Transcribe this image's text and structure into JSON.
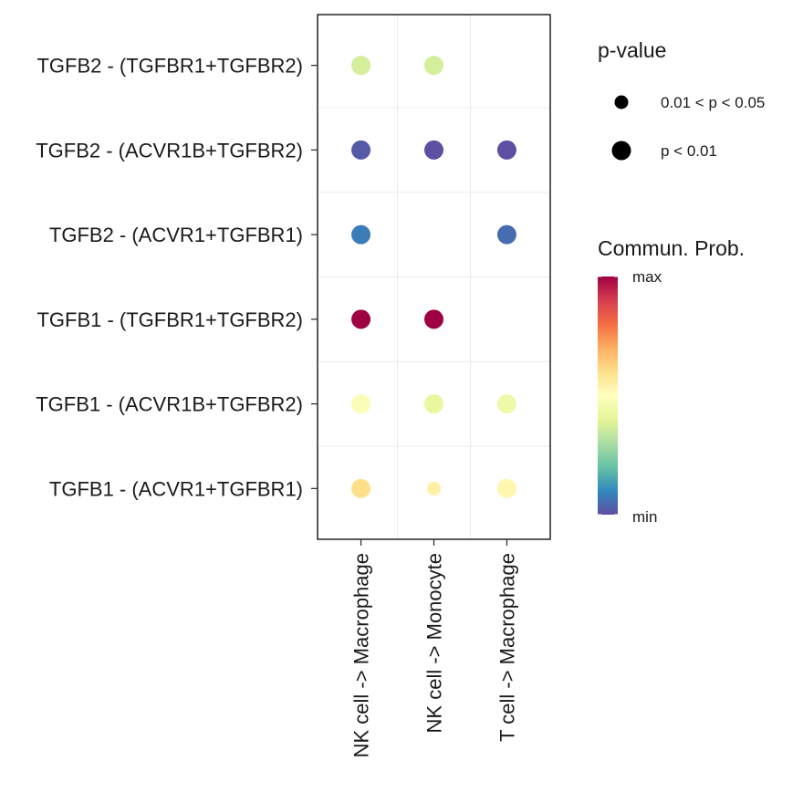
{
  "chart_data": {
    "type": "dot",
    "rows": [
      "TGFB2 - (TGFBR1+TGFBR2)",
      "TGFB2 - (ACVR1B+TGFBR2)",
      "TGFB2 - (ACVR1+TGFBR1)",
      "TGFB1 - (TGFBR1+TGFBR2)",
      "TGFB1 - (ACVR1B+TGFBR2)",
      "TGFB1 - (ACVR1+TGFBR1)"
    ],
    "columns": [
      "NK cell -> Macrophage",
      "NK cell -> Monocyte",
      "T cell -> Macrophage"
    ],
    "points": [
      {
        "row": "TGFB2 - (TGFBR1+TGFBR2)",
        "col": "NK cell -> Macrophage",
        "prob": 0.37,
        "pvalue": "p < 0.01"
      },
      {
        "row": "TGFB2 - (TGFBR1+TGFBR2)",
        "col": "NK cell -> Monocyte",
        "prob": 0.37,
        "pvalue": "p < 0.01"
      },
      {
        "row": "TGFB2 - (ACVR1B+TGFBR2)",
        "col": "NK cell -> Macrophage",
        "prob": 0.02,
        "pvalue": "p < 0.01"
      },
      {
        "row": "TGFB2 - (ACVR1B+TGFBR2)",
        "col": "NK cell -> Monocyte",
        "prob": 0.0,
        "pvalue": "p < 0.01"
      },
      {
        "row": "TGFB2 - (ACVR1B+TGFBR2)",
        "col": "T cell -> Macrophage",
        "prob": 0.0,
        "pvalue": "p < 0.01"
      },
      {
        "row": "TGFB2 - (ACVR1+TGFBR1)",
        "col": "NK cell -> Macrophage",
        "prob": 0.08,
        "pvalue": "p < 0.01"
      },
      {
        "row": "TGFB2 - (ACVR1+TGFBR1)",
        "col": "T cell -> Macrophage",
        "prob": 0.05,
        "pvalue": "p < 0.01"
      },
      {
        "row": "TGFB1 - (TGFBR1+TGFBR2)",
        "col": "NK cell -> Macrophage",
        "prob": 1.0,
        "pvalue": "p < 0.01"
      },
      {
        "row": "TGFB1 - (TGFBR1+TGFBR2)",
        "col": "NK cell -> Monocyte",
        "prob": 1.0,
        "pvalue": "p < 0.01"
      },
      {
        "row": "TGFB1 - (ACVR1B+TGFBR2)",
        "col": "NK cell -> Macrophage",
        "prob": 0.48,
        "pvalue": "p < 0.01"
      },
      {
        "row": "TGFB1 - (ACVR1B+TGFBR2)",
        "col": "NK cell -> Monocyte",
        "prob": 0.42,
        "pvalue": "p < 0.01"
      },
      {
        "row": "TGFB1 - (ACVR1B+TGFBR2)",
        "col": "T cell -> Macrophage",
        "prob": 0.44,
        "pvalue": "p < 0.01"
      },
      {
        "row": "TGFB1 - (ACVR1+TGFBR1)",
        "col": "NK cell -> Macrophage",
        "prob": 0.6,
        "pvalue": "p < 0.01"
      },
      {
        "row": "TGFB1 - (ACVR1+TGFBR1)",
        "col": "NK cell -> Monocyte",
        "prob": 0.55,
        "pvalue": "0.01 < p < 0.05"
      },
      {
        "row": "TGFB1 - (ACVR1+TGFBR1)",
        "col": "T cell -> Macrophage",
        "prob": 0.53,
        "pvalue": "p < 0.01"
      }
    ],
    "size_legend": {
      "title": "p-value",
      "items": [
        "0.01 < p < 0.05",
        "p < 0.01"
      ]
    },
    "color_legend": {
      "title": "Commun. Prob.",
      "max_label": "max",
      "min_label": "min",
      "palette": [
        "#5E4FA2",
        "#3288BD",
        "#66C2A5",
        "#ABDDA4",
        "#E6F598",
        "#FFFFBF",
        "#FEE08B",
        "#FDAE61",
        "#F46D43",
        "#D53E4F",
        "#9E0142"
      ]
    },
    "grid": true
  }
}
